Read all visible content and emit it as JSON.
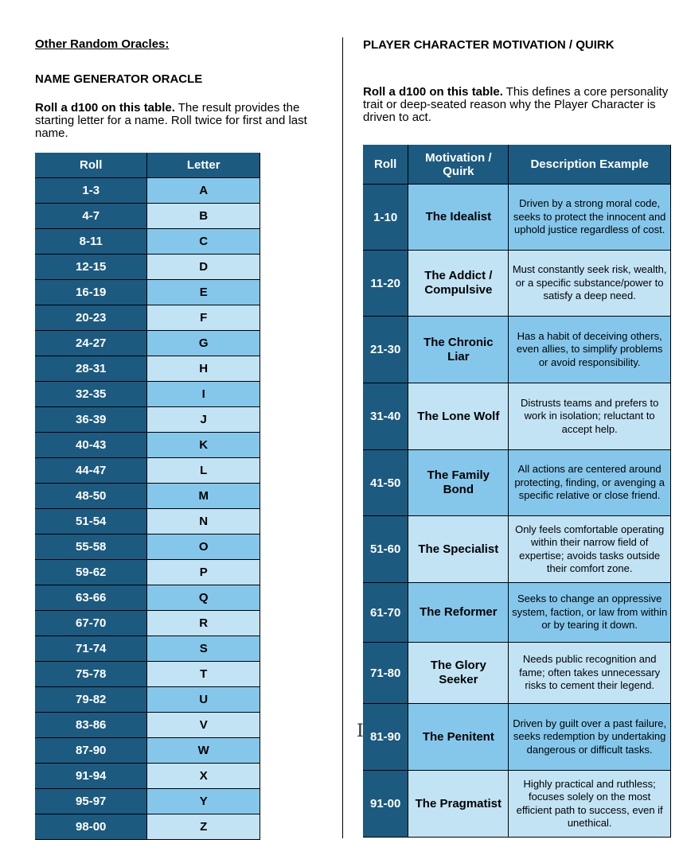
{
  "left": {
    "section_heading": "Other Random Oracles:",
    "name_heading": "NAME GENERATOR ORACLE",
    "intro_bold": "Roll a d100 on this table.",
    "intro_rest": " The result provides the starting letter for a name. Roll twice for first and last name.",
    "table": {
      "headers": [
        "Roll",
        "Letter"
      ],
      "rows": [
        [
          "1-3",
          "A"
        ],
        [
          "4-7",
          "B"
        ],
        [
          "8-11",
          "C"
        ],
        [
          "12-15",
          "D"
        ],
        [
          "16-19",
          "E"
        ],
        [
          "20-23",
          "F"
        ],
        [
          "24-27",
          "G"
        ],
        [
          "28-31",
          "H"
        ],
        [
          "32-35",
          "I"
        ],
        [
          "36-39",
          "J"
        ],
        [
          "40-43",
          "K"
        ],
        [
          "44-47",
          "L"
        ],
        [
          "48-50",
          "M"
        ],
        [
          "51-54",
          "N"
        ],
        [
          "55-58",
          "O"
        ],
        [
          "59-62",
          "P"
        ],
        [
          "63-66",
          "Q"
        ],
        [
          "67-70",
          "R"
        ],
        [
          "71-74",
          "S"
        ],
        [
          "75-78",
          "T"
        ],
        [
          "79-82",
          "U"
        ],
        [
          "83-86",
          "V"
        ],
        [
          "87-90",
          "W"
        ],
        [
          "91-94",
          "X"
        ],
        [
          "95-97",
          "Y"
        ],
        [
          "98-00",
          "Z"
        ]
      ]
    }
  },
  "right": {
    "heading": "PLAYER CHARACTER MOTIVATION / QUIRK",
    "intro_bold": "Roll a d100 on this table.",
    "intro_rest": " This defines a core personality trait or deep-seated reason why the Player Character is driven to act.",
    "table": {
      "headers": [
        "Roll",
        "Motivation / Quirk",
        "Description Example"
      ],
      "rows": [
        {
          "roll": "1-10",
          "quirk": "The Idealist",
          "desc": "Driven by a strong moral code, seeks to protect the innocent and uphold justice regardless of cost."
        },
        {
          "roll": "11-20",
          "quirk": "The Addict / Compulsive",
          "desc": "Must constantly seek risk, wealth, or a specific substance/power to satisfy a deep need."
        },
        {
          "roll": "21-30",
          "quirk": "The Chronic Liar",
          "desc": "Has a habit of deceiving others, even allies, to simplify problems or avoid responsibility."
        },
        {
          "roll": "31-40",
          "quirk": "The Lone Wolf",
          "desc": "Distrusts teams and prefers to work in isolation; reluctant to accept help."
        },
        {
          "roll": "41-50",
          "quirk": "The Family Bond",
          "desc": "All actions are centered around protecting, finding, or avenging a specific relative or close friend."
        },
        {
          "roll": "51-60",
          "quirk": "The Specialist",
          "desc": "Only feels comfortable operating within their narrow field of expertise; avoids tasks outside their comfort zone."
        },
        {
          "roll": "61-70",
          "quirk": "The Reformer",
          "desc": "Seeks to change an oppressive system, faction, or law from within or by tearing it down."
        },
        {
          "roll": "71-80",
          "quirk": "The Glory Seeker",
          "desc": "Needs public recognition and fame; often takes unnecessary risks to cement their legend."
        },
        {
          "roll": "81-90",
          "quirk": "The Penitent",
          "desc": "Driven by guilt over a past failure, seeks redemption by undertaking dangerous or difficult tasks."
        },
        {
          "roll": "91-00",
          "quirk": "The Pragmatist",
          "desc": "Highly practical and ruthless; focuses solely on the most efficient path to success, even if unethical."
        }
      ]
    }
  },
  "cursor_glyph": "I"
}
